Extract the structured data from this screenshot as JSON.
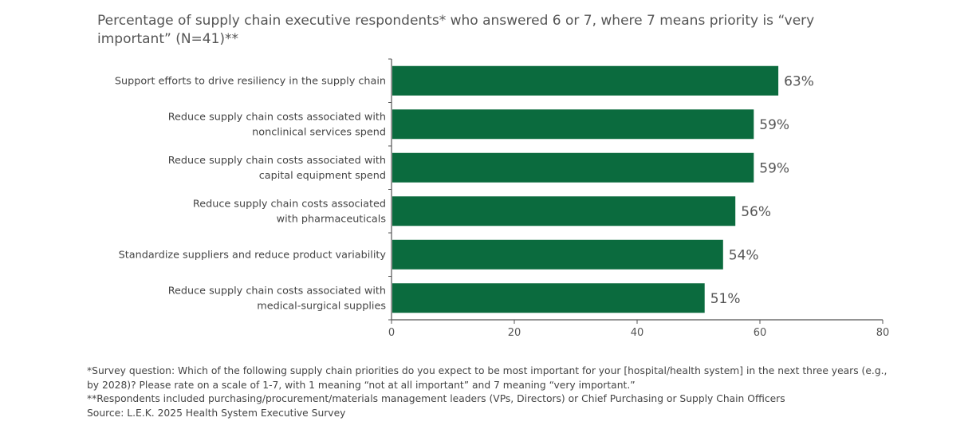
{
  "chart_data": {
    "type": "bar",
    "orientation": "horizontal",
    "title": "Percentage of supply chain executive respondents* who answered 6 or 7, where 7 means priority is “very important” (N=41)**",
    "categories": [
      [
        "Support efforts to drive resiliency in the supply chain"
      ],
      [
        "Reduce supply chain costs associated with",
        "nonclinical services spend"
      ],
      [
        "Reduce supply chain costs associated with",
        "capital equipment spend"
      ],
      [
        "Reduce supply chain costs associated",
        "with pharmaceuticals"
      ],
      [
        "Standardize suppliers and reduce product variability"
      ],
      [
        "Reduce supply chain costs associated with",
        "medical-surgical supplies"
      ]
    ],
    "values": [
      63,
      59,
      59,
      56,
      54,
      51
    ],
    "data_labels": [
      "63%",
      "59%",
      "59%",
      "56%",
      "54%",
      "51%"
    ],
    "xlim": [
      0,
      80
    ],
    "xticks": [
      "0",
      "20",
      "40",
      "60",
      "80"
    ],
    "xlabel": "",
    "ylabel": "",
    "grid": false,
    "bar_color": "#0b6b3e"
  },
  "notes": {
    "line1": "*Survey question: Which of the following supply chain priorities do you expect to be most important for your [hospital/health system] in the next three years (e.g., by 2028)? Please rate on a scale of 1-7, with 1 meaning “not at all important” and 7 meaning “very important.”",
    "line2": "**Respondents included purchasing/procurement/materials management leaders (VPs, Directors) or Chief Purchasing or Supply Chain Officers",
    "source": "Source: L.E.K. 2025 Health System Executive Survey"
  }
}
